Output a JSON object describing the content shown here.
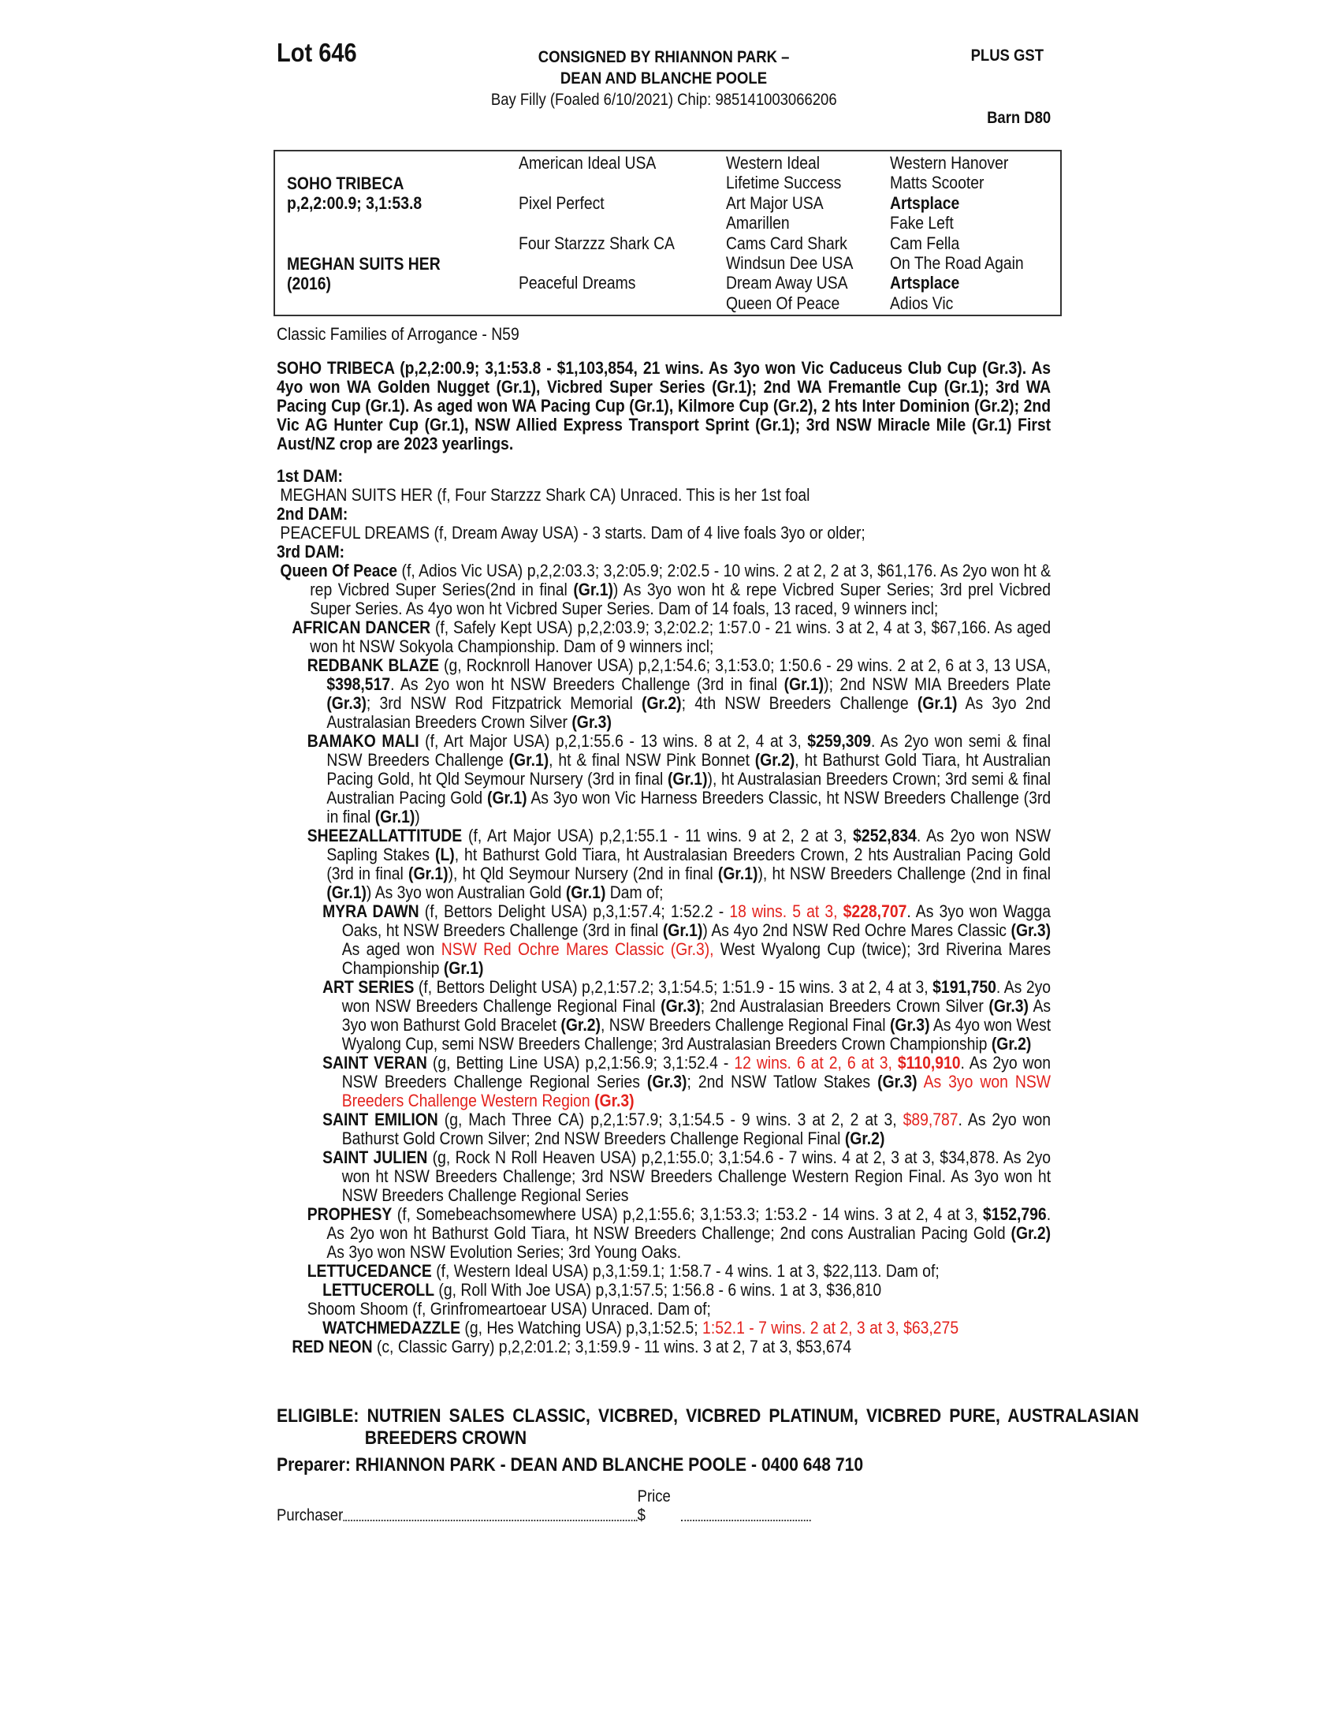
{
  "header": {
    "lot": "Lot 646",
    "consigned_lines": [
      "CONSIGNED BY RHIANNON PARK –",
      "DEAN AND BLANCHE POOLE"
    ],
    "description": "Bay Filly (Foaled 6/10/2021) Chip: 985141003066206",
    "plus_gst": "PLUS GST",
    "barn": "Barn D80"
  },
  "pedigree": {
    "sire": {
      "name": "SOHO TRIBECA",
      "record": "p,2,2:00.9; 3,1:53.8"
    },
    "dam": {
      "name": "MEGHAN SUITS HER",
      "year": "(2016)"
    },
    "col2": [
      "American Ideal USA",
      "Pixel Perfect",
      "Four Starzzz Shark CA",
      "Peaceful Dreams"
    ],
    "col3": [
      "Western Ideal",
      "Lifetime Success",
      "Art Major USA",
      "Amarillen",
      "Cams Card Shark",
      "Windsun Dee USA",
      "Dream Away USA",
      "Queen Of Peace"
    ],
    "col4": [
      {
        "t": "Western Hanover",
        "b": false
      },
      {
        "t": "Matts Scooter",
        "b": false
      },
      {
        "t": "Artsplace",
        "b": true
      },
      {
        "t": "Fake Left",
        "b": false
      },
      {
        "t": "Cam Fella",
        "b": false
      },
      {
        "t": "On The Road Again",
        "b": false
      },
      {
        "t": "Artsplace",
        "b": true
      },
      {
        "t": "Adios Vic",
        "b": false
      }
    ]
  },
  "family": "Classic Families of Arrogance - N59",
  "sire_para": "SOHO TRIBECA (p,2,2:00.9; 3,1:53.8 - $1,103,854, 21 wins. As 3yo won Vic Caduceus Club Cup (Gr.3). As 4yo won WA Golden Nugget (Gr.1), Vicbred Super Series (Gr.1); 2nd WA Fremantle Cup (Gr.1); 3rd WA Pacing Cup (Gr.1). As aged won WA Pacing Cup (Gr.1), Kilmore Cup (Gr.2), 2 hts Inter Dominion (Gr.2); 2nd Vic AG Hunter Cup (Gr.1), NSW Allied Express Transport Sprint (Gr.1); 3rd NSW Miracle Mile (Gr.1) First Aust/NZ  crop are 2023 yearlings.",
  "dams": [
    {
      "label": "1st DAM:",
      "entries": [
        {
          "level": 0,
          "segs": [
            [
              "MEGHAN SUITS HER (f, Four Starzzz Shark CA) Unraced. This is her 1st foal",
              ""
            ]
          ]
        }
      ]
    },
    {
      "label": "2nd DAM:",
      "entries": [
        {
          "level": 0,
          "segs": [
            [
              "PEACEFUL DREAMS (f, Dream Away USA) - 3 starts. Dam of 4 live foals 3yo or older;",
              ""
            ]
          ]
        }
      ]
    },
    {
      "label": "3rd DAM:",
      "entries": [
        {
          "level": 0,
          "segs": [
            [
              "Queen Of Peace",
              "b"
            ],
            [
              " (f, Adios Vic USA) p,2,2:03.3; 3,2:05.9; 2:02.5 - 10 wins. 2 at 2, 2 at 3, $61,176. As 2yo won ht & rep Vicbred Super Series(2nd in final ",
              ""
            ],
            [
              "(Gr.1)",
              "b"
            ],
            [
              ") As 3yo won ht & repe Vicbred Super Series; 3rd prel Vicbred Super Series. As 4yo won ht Vicbred Super Series. Dam of 14 foals, 13 raced, 9 winners incl;",
              ""
            ]
          ]
        },
        {
          "level": 1,
          "segs": [
            [
              "AFRICAN DANCER",
              "b"
            ],
            [
              " (f, Safely Kept USA) p,2,2:03.9; 3,2:02.2; 1:57.0 - 21 wins. 3 at 2, 4 at 3, $67,166. As aged won ht NSW Sokyola Championship. Dam of 9 winners incl;",
              ""
            ]
          ]
        },
        {
          "level": 2,
          "segs": [
            [
              "REDBANK BLAZE",
              "b"
            ],
            [
              " (g, Rocknroll Hanover USA) p,2,1:54.6; 3,1:53.0; 1:50.6 - 29 wins. 2 at 2, 6 at 3, 13 USA, ",
              ""
            ],
            [
              "$398,517",
              "b"
            ],
            [
              ". As 2yo won ht NSW Breeders Challenge (3rd in final ",
              ""
            ],
            [
              "(Gr.1)",
              "b"
            ],
            [
              "); 2nd NSW MIA Breeders Plate ",
              ""
            ],
            [
              "(Gr.3)",
              "b"
            ],
            [
              "; 3rd NSW Rod Fitzpatrick Memorial ",
              ""
            ],
            [
              "(Gr.2)",
              "b"
            ],
            [
              "; 4th NSW Breeders Challenge ",
              ""
            ],
            [
              "(Gr.1)",
              "b"
            ],
            [
              " As 3yo 2nd Australasian Breeders Crown Silver ",
              ""
            ],
            [
              "(Gr.3)",
              "b"
            ]
          ]
        },
        {
          "level": 2,
          "segs": [
            [
              "BAMAKO MALI",
              "b"
            ],
            [
              " (f, Art Major USA) p,2,1:55.6 - 13 wins. 8 at 2, 4 at 3, ",
              ""
            ],
            [
              "$259,309",
              "b"
            ],
            [
              ". As 2yo won semi & final NSW Breeders Challenge ",
              ""
            ],
            [
              "(Gr.1)",
              "b"
            ],
            [
              ", ht & final NSW Pink Bonnet ",
              ""
            ],
            [
              "(Gr.2)",
              "b"
            ],
            [
              ", ht Bathurst Gold Tiara, ht Australian Pacing Gold, ht Qld Seymour Nursery (3rd in final ",
              ""
            ],
            [
              "(Gr.1)",
              "b"
            ],
            [
              "), ht Australasian Breeders Crown; 3rd semi & final Australian Pacing Gold ",
              ""
            ],
            [
              "(Gr.1)",
              "b"
            ],
            [
              " As 3yo won Vic Harness Breeders Classic, ht NSW Breeders Challenge (3rd in final ",
              ""
            ],
            [
              "(Gr.1)",
              "b"
            ],
            [
              ")",
              ""
            ]
          ]
        },
        {
          "level": 2,
          "segs": [
            [
              "SHEEZALLATTITUDE",
              "b"
            ],
            [
              " (f, Art Major USA) p,2,1:55.1 - 11 wins. 9 at 2, 2 at 3, ",
              ""
            ],
            [
              "$252,834",
              "b"
            ],
            [
              ". As 2yo won NSW Sapling Stakes ",
              ""
            ],
            [
              "(L)",
              "b"
            ],
            [
              ", ht Bathurst Gold Tiara, ht Australasian Breeders Crown, 2 hts Australian Pacing Gold (3rd in final ",
              ""
            ],
            [
              "(Gr.1)",
              "b"
            ],
            [
              "), ht Qld Seymour Nursery (2nd in final ",
              ""
            ],
            [
              "(Gr.1)",
              "b"
            ],
            [
              "), ht NSW Breeders Challenge (2nd in final ",
              ""
            ],
            [
              "(Gr.1)",
              "b"
            ],
            [
              ") As 3yo won Australian Gold ",
              ""
            ],
            [
              "(Gr.1)",
              "b"
            ],
            [
              " Dam of;",
              ""
            ]
          ]
        },
        {
          "level": 3,
          "segs": [
            [
              "MYRA DAWN",
              "b"
            ],
            [
              " (f, Bettors Delight USA) p,3,1:57.4; 1:52.2 - ",
              ""
            ],
            [
              "18 wins. 5 at 3, ",
              "r"
            ],
            [
              "$228,707",
              "rb"
            ],
            [
              ". As 3yo won Wagga Oaks, ht NSW Breeders Challenge (3rd in final ",
              ""
            ],
            [
              "(Gr.1)",
              "b"
            ],
            [
              ") As 4yo 2nd NSW Red Ochre Mares Classic ",
              ""
            ],
            [
              "(Gr.3)",
              "b"
            ],
            [
              " As aged won ",
              ""
            ],
            [
              "NSW Red Ochre Mares Classic (Gr.3),",
              "r"
            ],
            [
              " West Wyalong Cup (twice); 3rd Riverina Mares Championship ",
              ""
            ],
            [
              "(Gr.1)",
              "b"
            ]
          ]
        },
        {
          "level": 3,
          "segs": [
            [
              "ART SERIES",
              "b"
            ],
            [
              " (f, Bettors Delight USA) p,2,1:57.2; 3,1:54.5; 1:51.9 - 15 wins. 3 at 2, 4 at 3, ",
              ""
            ],
            [
              "$191,750",
              "b"
            ],
            [
              ". As 2yo won NSW Breeders Challenge Regional Final ",
              ""
            ],
            [
              "(Gr.3)",
              "b"
            ],
            [
              "; 2nd Australasian Breeders Crown Silver ",
              ""
            ],
            [
              "(Gr.3)",
              "b"
            ],
            [
              " As 3yo won Bathurst Gold Bracelet ",
              ""
            ],
            [
              "(Gr.2)",
              "b"
            ],
            [
              ", NSW Breeders Challenge Regional Final ",
              ""
            ],
            [
              "(Gr.3)",
              "b"
            ],
            [
              " As 4yo won West Wyalong Cup, semi NSW Breeders Challenge; 3rd Australasian Breeders Crown Championship ",
              ""
            ],
            [
              "(Gr.2)",
              "b"
            ]
          ]
        },
        {
          "level": 3,
          "segs": [
            [
              "SAINT VERAN",
              "b"
            ],
            [
              " (g, Betting Line USA) p,2,1:56.9; 3,1:52.4 - ",
              ""
            ],
            [
              "12 wins. 6 at 2, 6 at 3, ",
              "r"
            ],
            [
              "$110,910",
              "rb"
            ],
            [
              ". As 2yo won NSW Breeders Challenge Regional Series ",
              ""
            ],
            [
              "(Gr.3)",
              "b"
            ],
            [
              "; 2nd NSW Tatlow Stakes ",
              ""
            ],
            [
              "(Gr.3)",
              "b"
            ],
            [
              " ",
              ""
            ],
            [
              "As 3yo won NSW Breeders Challenge Western Region ",
              "r"
            ],
            [
              "(Gr.3)",
              "rb"
            ]
          ]
        },
        {
          "level": 3,
          "segs": [
            [
              "SAINT EMILION",
              "b"
            ],
            [
              " (g, Mach Three CA) p,2,1:57.9; 3,1:54.5 - 9 wins. 3 at 2, 2 at 3, ",
              ""
            ],
            [
              "$89,787",
              "r"
            ],
            [
              ". As 2yo won Bathurst Gold Crown Silver; 2nd NSW Breeders Challenge Regional Final ",
              ""
            ],
            [
              "(Gr.2)",
              "b"
            ]
          ]
        },
        {
          "level": 3,
          "segs": [
            [
              "SAINT JULIEN",
              "b"
            ],
            [
              " (g, Rock N Roll Heaven USA) p,2,1:55.0; 3,1:54.6 - 7 wins. 4 at 2, 3 at 3, $34,878. As 2yo won ht NSW Breeders Challenge; 3rd NSW Breeders Challenge Western Region Final. As 3yo won ht NSW Breeders Challenge Regional Series",
              ""
            ]
          ]
        },
        {
          "level": 2,
          "segs": [
            [
              "PROPHESY",
              "b"
            ],
            [
              " (f, Somebeachsomewhere USA) p,2,1:55.6; 3,1:53.3; 1:53.2 - 14 wins. 3 at 2, 4 at 3, ",
              ""
            ],
            [
              "$152,796",
              "b"
            ],
            [
              ". As 2yo won ht Bathurst Gold Tiara, ht NSW Breeders Challenge; 2nd cons Australian Pacing Gold ",
              ""
            ],
            [
              "(Gr.2)",
              "b"
            ],
            [
              " As 3yo won NSW Evolution Series; 3rd Young Oaks.",
              ""
            ]
          ]
        },
        {
          "level": 2,
          "segs": [
            [
              "LETTUCEDANCE",
              "b"
            ],
            [
              " (f, Western Ideal USA) p,3,1:59.1; 1:58.7 - 4 wins. 1 at 3, $22,113. Dam of;",
              ""
            ]
          ]
        },
        {
          "level": 3,
          "segs": [
            [
              "LETTUCEROLL",
              "b"
            ],
            [
              " (g, Roll With Joe USA) p,3,1:57.5; 1:56.8 - 6 wins. 1 at 3, $36,810",
              ""
            ]
          ]
        },
        {
          "level": 2,
          "segs": [
            [
              "Shoom Shoom (f, Grinfromeartoear USA) Unraced. Dam of;",
              ""
            ]
          ]
        },
        {
          "level": 3,
          "segs": [
            [
              "WATCHMEDAZZLE",
              "b"
            ],
            [
              " (g, Hes Watching USA) p,3,1:52.5; ",
              ""
            ],
            [
              "1:52.1 - 7 wins. 2 at 2, 3 at 3, $63,275",
              "r"
            ]
          ]
        },
        {
          "level": 1,
          "segs": [
            [
              "RED NEON",
              "b"
            ],
            [
              " (c, Classic Garry) p,2,2:01.2; 3,1:59.9 - 11 wins. 3 at 2, 7 at 3, $53,674",
              ""
            ]
          ]
        }
      ]
    }
  ],
  "eligible": "ELIGIBLE: NUTRIEN SALES CLASSIC, VICBRED, VICBRED PLATINUM, VICBRED PURE, AUSTRALASIAN BREEDERS CROWN",
  "preparer": "Preparer: RHIANNON PARK - DEAN AND BLANCHE POOLE - 0400 648 710",
  "purchase": {
    "purchaser_label": "Purchaser",
    "price_label": "Price $"
  },
  "colors": {
    "text": "#111111",
    "highlight_red": "#e3221d",
    "border": "#333333"
  }
}
